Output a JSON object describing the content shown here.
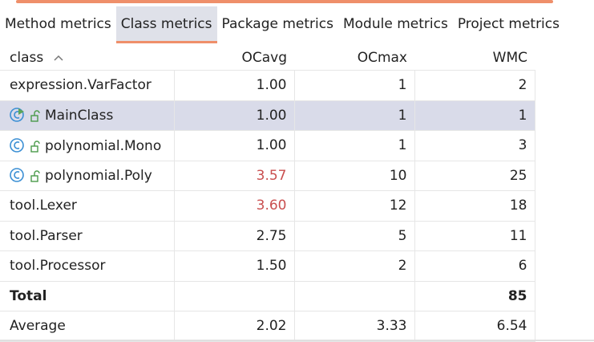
{
  "tabs": [
    "Method metrics",
    "Class metrics",
    "Package metrics",
    "Module metrics",
    "Project metrics"
  ],
  "table": {
    "columns": [
      "class",
      "OCavg",
      "OCmax",
      "WMC"
    ],
    "rows": [
      [
        "expression.VarFactor",
        "1.00",
        "1",
        "2"
      ],
      [
        "MainClass",
        "1.00",
        "1",
        "1"
      ],
      [
        "polynomial.Mono",
        "1.00",
        "1",
        "3"
      ],
      [
        "polynomial.Poly",
        "3.57",
        "10",
        "25"
      ],
      [
        "tool.Lexer",
        "3.60",
        "12",
        "18"
      ],
      [
        "tool.Parser",
        "2.75",
        "5",
        "11"
      ],
      [
        "tool.Processor",
        "1.50",
        "2",
        "6"
      ]
    ],
    "total": {
      "label": "Total",
      "WMC": "85"
    },
    "average": [
      "Average",
      "2.02",
      "3.33",
      "6.54"
    ]
  }
}
